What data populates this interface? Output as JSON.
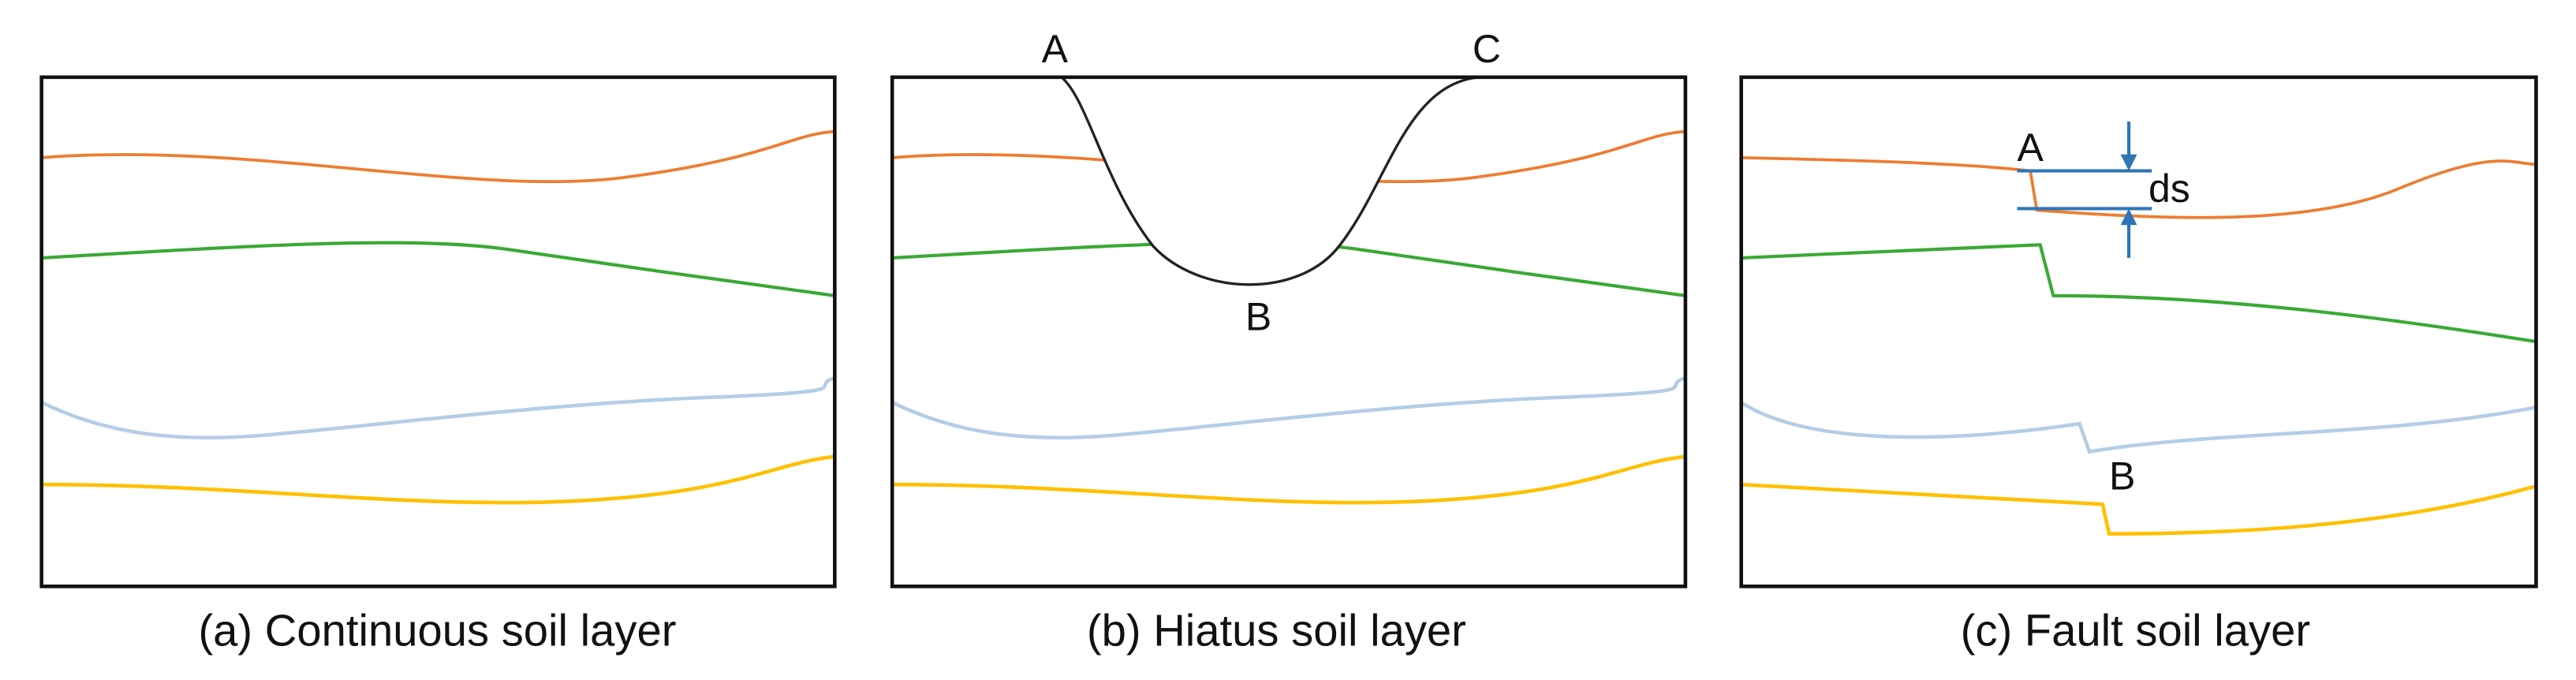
{
  "panels": [
    {
      "caption": "(a) Continuous soil layer"
    },
    {
      "caption": "(b) Hiatus soil layer",
      "labels": [
        "A",
        "B",
        "C"
      ]
    },
    {
      "caption": "(c) Fault soil layer",
      "labels": [
        "A",
        "B",
        "ds"
      ]
    }
  ]
}
